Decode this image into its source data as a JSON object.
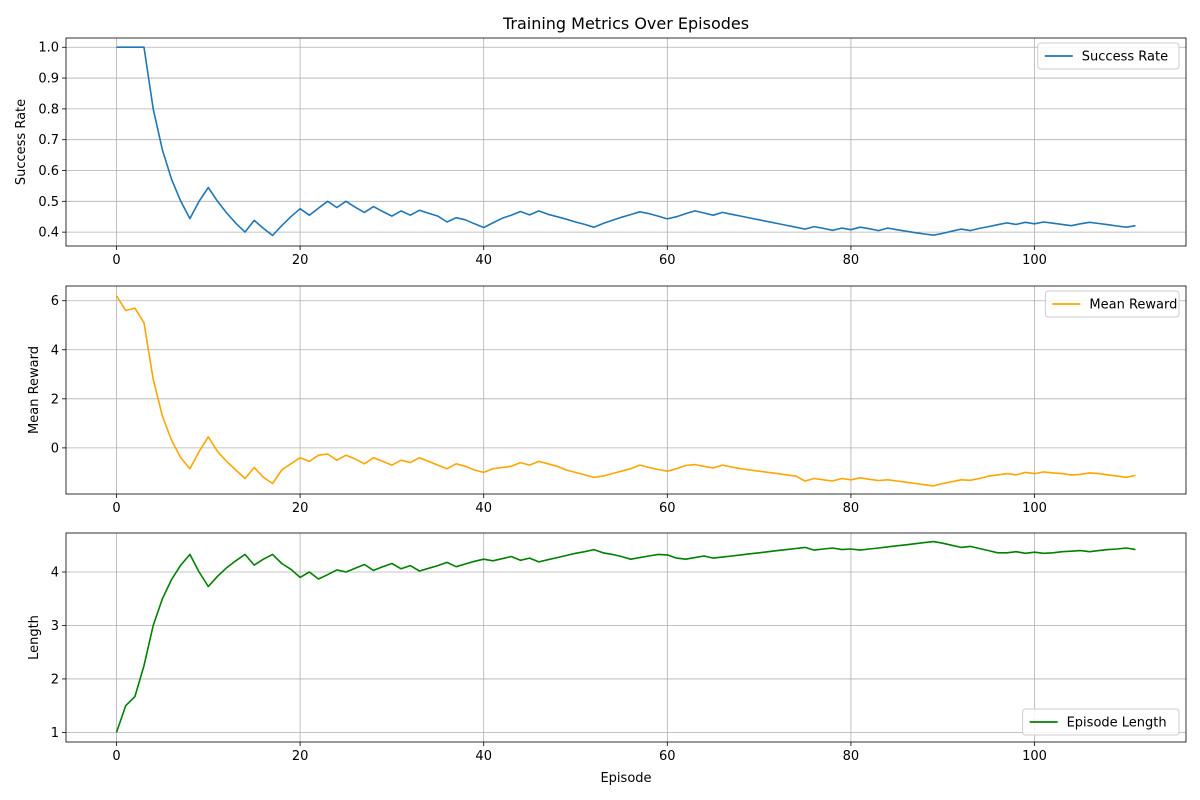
{
  "figure": {
    "title": "Training Metrics Over Episodes",
    "xlabel": "Episode"
  },
  "chart_data": [
    {
      "type": "line",
      "ylabel": "Success Rate",
      "xlim": [
        -5.5,
        116.5
      ],
      "ylim": [
        0.355,
        1.03
      ],
      "xticks": [
        0,
        20,
        40,
        60,
        80,
        100
      ],
      "yticks": [
        0.4,
        0.5,
        0.6,
        0.7,
        0.8,
        0.9,
        1.0
      ],
      "ytick_labels": [
        "0.4",
        "0.5",
        "0.6",
        "0.7",
        "0.8",
        "0.9",
        "1.0"
      ],
      "grid": true,
      "legend": "top-right",
      "series": [
        {
          "name": "Success Rate",
          "color": "#1f77b4",
          "x": [
            0,
            1,
            2,
            3,
            4,
            5,
            6,
            7,
            8,
            9,
            10,
            11,
            12,
            13,
            14,
            15,
            16,
            17,
            18,
            19,
            20,
            21,
            22,
            23,
            24,
            25,
            26,
            27,
            28,
            29,
            30,
            31,
            32,
            33,
            34,
            35,
            36,
            37,
            38,
            39,
            40,
            41,
            42,
            43,
            44,
            45,
            46,
            47,
            48,
            49,
            50,
            51,
            52,
            53,
            54,
            55,
            56,
            57,
            58,
            59,
            60,
            61,
            62,
            63,
            64,
            65,
            66,
            67,
            68,
            69,
            70,
            71,
            72,
            73,
            74,
            75,
            76,
            77,
            78,
            79,
            80,
            81,
            82,
            83,
            84,
            85,
            86,
            87,
            88,
            89,
            90,
            91,
            92,
            93,
            94,
            95,
            96,
            97,
            98,
            99,
            100,
            101,
            102,
            103,
            104,
            105,
            106,
            107,
            108,
            109,
            110,
            111
          ],
          "y": [
            1.0,
            1.0,
            1.0,
            1.0,
            0.8,
            0.667,
            0.571,
            0.5,
            0.444,
            0.5,
            0.545,
            0.5,
            0.462,
            0.429,
            0.4,
            0.438,
            0.412,
            0.389,
            0.421,
            0.45,
            0.476,
            0.455,
            0.478,
            0.5,
            0.48,
            0.5,
            0.481,
            0.464,
            0.483,
            0.467,
            0.452,
            0.469,
            0.455,
            0.471,
            0.461,
            0.452,
            0.433,
            0.447,
            0.44,
            0.427,
            0.415,
            0.43,
            0.445,
            0.455,
            0.467,
            0.456,
            0.469,
            0.458,
            0.45,
            0.442,
            0.433,
            0.425,
            0.416,
            0.428,
            0.438,
            0.448,
            0.457,
            0.466,
            0.46,
            0.452,
            0.443,
            0.45,
            0.46,
            0.469,
            0.462,
            0.455,
            0.464,
            0.458,
            0.452,
            0.446,
            0.44,
            0.434,
            0.428,
            0.422,
            0.416,
            0.41,
            0.418,
            0.412,
            0.406,
            0.413,
            0.408,
            0.416,
            0.411,
            0.405,
            0.413,
            0.408,
            0.403,
            0.398,
            0.394,
            0.39,
            0.396,
            0.403,
            0.41,
            0.405,
            0.412,
            0.418,
            0.424,
            0.43,
            0.425,
            0.432,
            0.427,
            0.433,
            0.429,
            0.425,
            0.421,
            0.427,
            0.432,
            0.428,
            0.424,
            0.42,
            0.416,
            0.421
          ]
        }
      ]
    },
    {
      "type": "line",
      "ylabel": "Mean Reward",
      "xlim": [
        -5.5,
        116.5
      ],
      "ylim": [
        -1.88,
        6.6
      ],
      "xticks": [
        0,
        20,
        40,
        60,
        80,
        100
      ],
      "yticks": [
        0,
        2,
        4,
        6
      ],
      "ytick_labels": [
        "0",
        "2",
        "4",
        "6"
      ],
      "grid": true,
      "legend": "top-right",
      "series": [
        {
          "name": "Mean Reward",
          "color": "#ffa500",
          "x": [
            0,
            1,
            2,
            3,
            4,
            5,
            6,
            7,
            8,
            9,
            10,
            11,
            12,
            13,
            14,
            15,
            16,
            17,
            18,
            19,
            20,
            21,
            22,
            23,
            24,
            25,
            26,
            27,
            28,
            29,
            30,
            31,
            32,
            33,
            34,
            35,
            36,
            37,
            38,
            39,
            40,
            41,
            42,
            43,
            44,
            45,
            46,
            47,
            48,
            49,
            50,
            51,
            52,
            53,
            54,
            55,
            56,
            57,
            58,
            59,
            60,
            61,
            62,
            63,
            64,
            65,
            66,
            67,
            68,
            69,
            70,
            71,
            72,
            73,
            74,
            75,
            76,
            77,
            78,
            79,
            80,
            81,
            82,
            83,
            84,
            85,
            86,
            87,
            88,
            89,
            90,
            91,
            92,
            93,
            94,
            95,
            96,
            97,
            98,
            99,
            100,
            101,
            102,
            103,
            104,
            105,
            106,
            107,
            108,
            109,
            110,
            111
          ],
          "y": [
            6.2,
            5.6,
            5.7,
            5.1,
            2.8,
            1.3,
            0.3,
            -0.4,
            -0.85,
            -0.15,
            0.45,
            -0.15,
            -0.55,
            -0.9,
            -1.25,
            -0.8,
            -1.2,
            -1.45,
            -0.9,
            -0.65,
            -0.4,
            -0.55,
            -0.3,
            -0.25,
            -0.5,
            -0.3,
            -0.45,
            -0.65,
            -0.4,
            -0.55,
            -0.7,
            -0.5,
            -0.6,
            -0.4,
            -0.55,
            -0.7,
            -0.85,
            -0.65,
            -0.75,
            -0.9,
            -1.0,
            -0.85,
            -0.8,
            -0.75,
            -0.6,
            -0.7,
            -0.55,
            -0.65,
            -0.75,
            -0.9,
            -1.0,
            -1.1,
            -1.2,
            -1.15,
            -1.05,
            -0.95,
            -0.85,
            -0.7,
            -0.8,
            -0.88,
            -0.95,
            -0.85,
            -0.72,
            -0.68,
            -0.75,
            -0.82,
            -0.7,
            -0.78,
            -0.85,
            -0.9,
            -0.95,
            -1.0,
            -1.05,
            -1.1,
            -1.15,
            -1.35,
            -1.25,
            -1.3,
            -1.35,
            -1.25,
            -1.3,
            -1.22,
            -1.28,
            -1.33,
            -1.3,
            -1.35,
            -1.4,
            -1.45,
            -1.5,
            -1.55,
            -1.45,
            -1.38,
            -1.3,
            -1.32,
            -1.25,
            -1.15,
            -1.1,
            -1.05,
            -1.1,
            -1.0,
            -1.05,
            -0.98,
            -1.02,
            -1.05,
            -1.1,
            -1.08,
            -1.02,
            -1.05,
            -1.1,
            -1.15,
            -1.2,
            -1.12
          ]
        }
      ]
    },
    {
      "type": "line",
      "ylabel": "Length",
      "xlim": [
        -5.5,
        116.5
      ],
      "ylim": [
        0.82,
        4.73
      ],
      "xticks": [
        0,
        20,
        40,
        60,
        80,
        100
      ],
      "yticks": [
        1,
        2,
        3,
        4
      ],
      "ytick_labels": [
        "1",
        "2",
        "3",
        "4"
      ],
      "grid": true,
      "legend": "bottom-right",
      "series": [
        {
          "name": "Episode Length",
          "color": "#008000",
          "x": [
            0,
            1,
            2,
            3,
            4,
            5,
            6,
            7,
            8,
            9,
            10,
            11,
            12,
            13,
            14,
            15,
            16,
            17,
            18,
            19,
            20,
            21,
            22,
            23,
            24,
            25,
            26,
            27,
            28,
            29,
            30,
            31,
            32,
            33,
            34,
            35,
            36,
            37,
            38,
            39,
            40,
            41,
            42,
            43,
            44,
            45,
            46,
            47,
            48,
            49,
            50,
            51,
            52,
            53,
            54,
            55,
            56,
            57,
            58,
            59,
            60,
            61,
            62,
            63,
            64,
            65,
            66,
            67,
            68,
            69,
            70,
            71,
            72,
            73,
            74,
            75,
            76,
            77,
            78,
            79,
            80,
            81,
            82,
            83,
            84,
            85,
            86,
            87,
            88,
            89,
            90,
            91,
            92,
            93,
            94,
            95,
            96,
            97,
            98,
            99,
            100,
            101,
            102,
            103,
            104,
            105,
            106,
            107,
            108,
            109,
            110,
            111
          ],
          "y": [
            1.0,
            1.5,
            1.67,
            2.25,
            3.0,
            3.5,
            3.86,
            4.13,
            4.33,
            4.0,
            3.73,
            3.92,
            4.08,
            4.21,
            4.33,
            4.13,
            4.24,
            4.33,
            4.16,
            4.05,
            3.9,
            4.0,
            3.87,
            3.95,
            4.04,
            4.0,
            4.07,
            4.14,
            4.03,
            4.1,
            4.16,
            4.06,
            4.12,
            4.02,
            4.07,
            4.12,
            4.18,
            4.1,
            4.15,
            4.2,
            4.24,
            4.21,
            4.25,
            4.29,
            4.22,
            4.26,
            4.19,
            4.23,
            4.27,
            4.31,
            4.35,
            4.38,
            4.42,
            4.36,
            4.33,
            4.29,
            4.24,
            4.27,
            4.3,
            4.33,
            4.32,
            4.26,
            4.24,
            4.27,
            4.3,
            4.26,
            4.28,
            4.3,
            4.32,
            4.34,
            4.36,
            4.38,
            4.4,
            4.42,
            4.44,
            4.46,
            4.41,
            4.43,
            4.45,
            4.42,
            4.43,
            4.41,
            4.43,
            4.45,
            4.47,
            4.49,
            4.51,
            4.53,
            4.55,
            4.57,
            4.54,
            4.5,
            4.46,
            4.48,
            4.44,
            4.4,
            4.36,
            4.36,
            4.38,
            4.35,
            4.37,
            4.35,
            4.36,
            4.38,
            4.39,
            4.4,
            4.38,
            4.4,
            4.42,
            4.43,
            4.45,
            4.42
          ]
        }
      ]
    }
  ]
}
